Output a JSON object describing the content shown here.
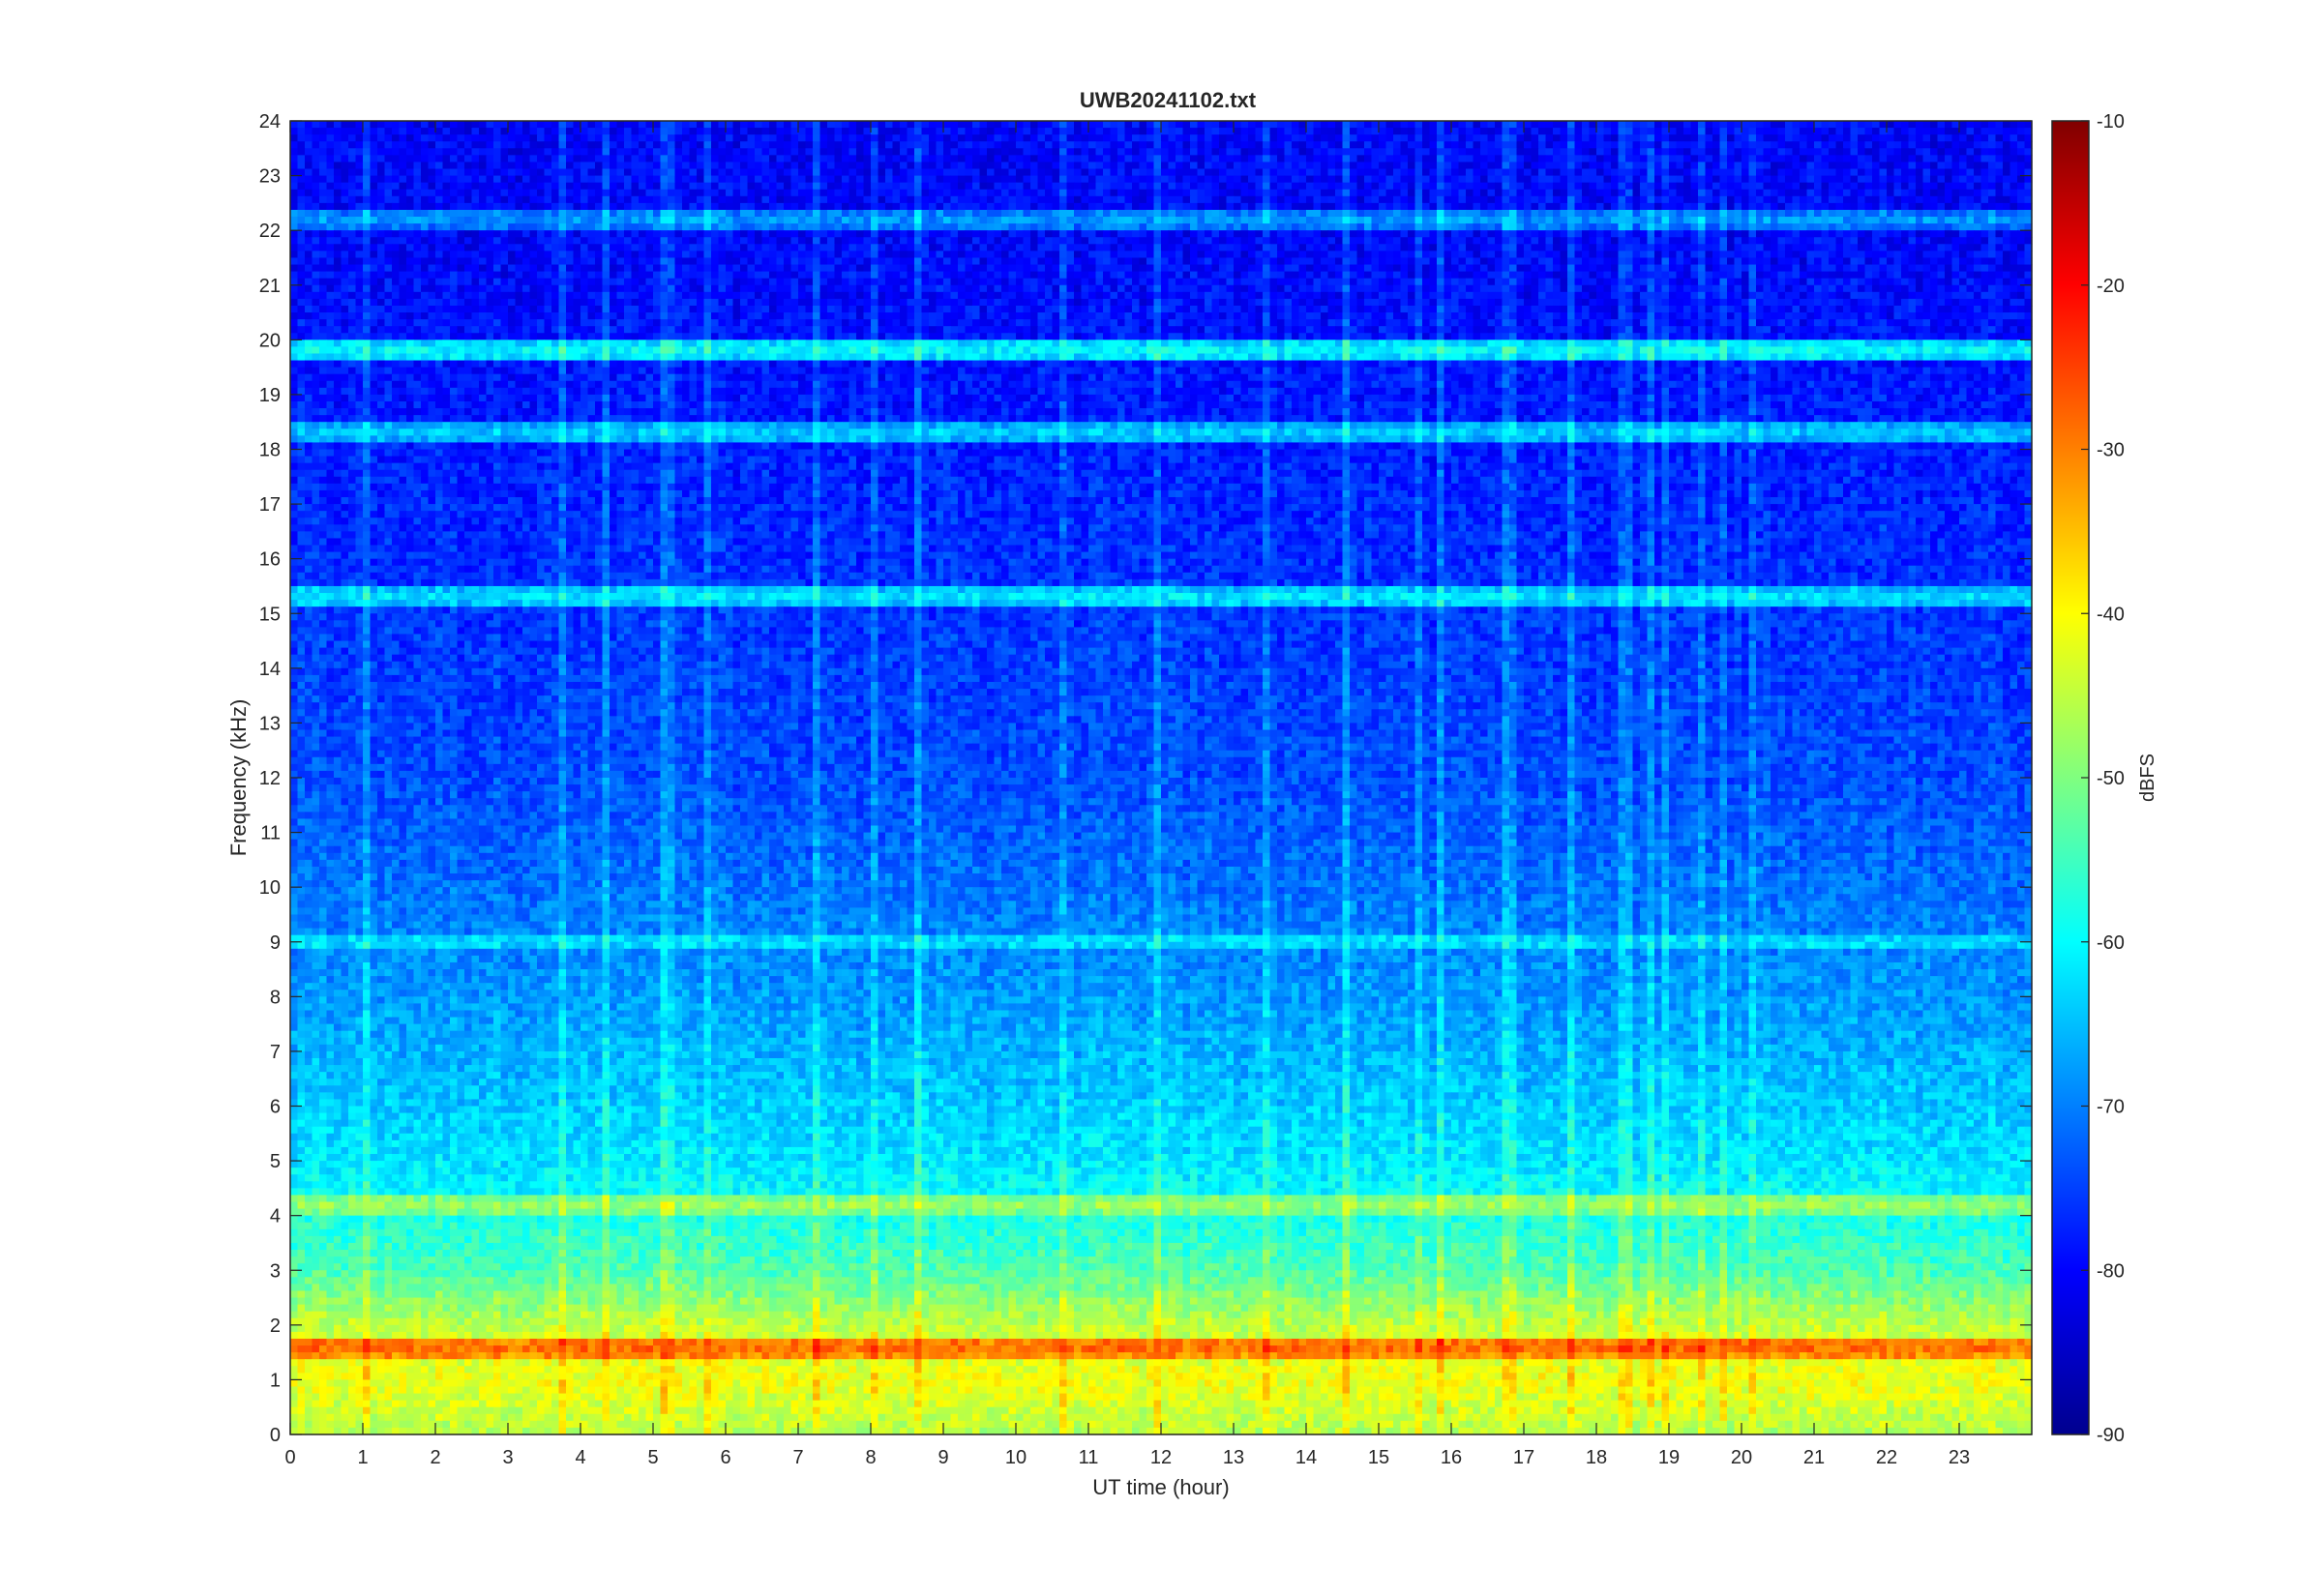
{
  "chart_data": {
    "type": "heatmap",
    "title": "UWB20241102.txt",
    "xlabel": "UT time (hour)",
    "ylabel": "Frequency (kHz)",
    "xlim": [
      0,
      24
    ],
    "ylim": [
      0,
      24
    ],
    "x_ticks": [
      0,
      1,
      2,
      3,
      4,
      5,
      6,
      7,
      8,
      9,
      10,
      11,
      12,
      13,
      14,
      15,
      16,
      17,
      18,
      19,
      20,
      21,
      22,
      23
    ],
    "y_ticks": [
      0,
      1,
      2,
      3,
      4,
      5,
      6,
      7,
      8,
      9,
      10,
      11,
      12,
      13,
      14,
      15,
      16,
      17,
      18,
      19,
      20,
      21,
      22,
      23,
      24
    ],
    "colorbar": {
      "label": "dBFS",
      "colormap": "jet",
      "range": [
        -90,
        -10
      ],
      "ticks": [
        -90,
        -80,
        -70,
        -60,
        -50,
        -40,
        -30,
        -20,
        -10
      ]
    },
    "grid": false,
    "bands": [
      {
        "freq_khz": 1.6,
        "level_dbfs": -28
      },
      {
        "freq_khz": 4.2,
        "level_dbfs": -48
      },
      {
        "freq_khz": 9.0,
        "level_dbfs": -62
      },
      {
        "freq_khz": 15.3,
        "level_dbfs": -62
      },
      {
        "freq_khz": 18.3,
        "level_dbfs": -64
      },
      {
        "freq_khz": 19.8,
        "level_dbfs": -60
      },
      {
        "freq_khz": 22.2,
        "level_dbfs": -68
      }
    ],
    "background_profile": [
      {
        "freq_khz": 0,
        "level_dbfs": -46
      },
      {
        "freq_khz": 1,
        "level_dbfs": -41
      },
      {
        "freq_khz": 2,
        "level_dbfs": -45
      },
      {
        "freq_khz": 3,
        "level_dbfs": -54
      },
      {
        "freq_khz": 5,
        "level_dbfs": -62
      },
      {
        "freq_khz": 8,
        "level_dbfs": -68
      },
      {
        "freq_khz": 12,
        "level_dbfs": -74
      },
      {
        "freq_khz": 17,
        "level_dbfs": -77
      },
      {
        "freq_khz": 22,
        "level_dbfs": -80
      },
      {
        "freq_khz": 24,
        "level_dbfs": -80
      }
    ]
  }
}
